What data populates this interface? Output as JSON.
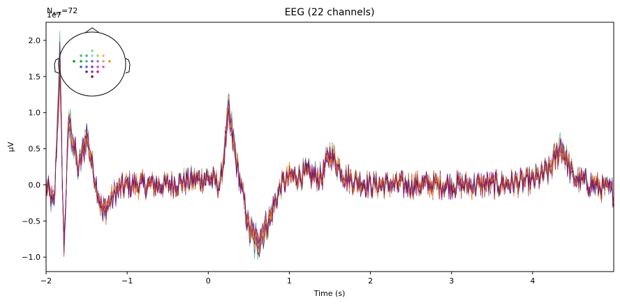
{
  "chart_data": {
    "type": "line",
    "title": "EEG (22 channels)",
    "annotation_top_left": "N",
    "annotation_ave": "ave",
    "annotation_n": "=72",
    "offset_label": "1e7",
    "xlabel": "Time (s)",
    "ylabel": "µV",
    "xlim": [
      -2,
      5
    ],
    "ylim": [
      -1.2,
      2.25
    ],
    "x_ticks": [
      -2,
      -1,
      0,
      1,
      2,
      3,
      4
    ],
    "x_tick_labels": [
      "−2",
      "−1",
      "0",
      "1",
      "2",
      "3",
      "4"
    ],
    "y_ticks": [
      -1.0,
      -0.5,
      0.0,
      0.5,
      1.0,
      1.5,
      2.0
    ],
    "y_tick_labels": [
      "−1.0",
      "−0.5",
      "0.0",
      "0.5",
      "1.0",
      "1.5",
      "2.0"
    ],
    "grid": false,
    "sensor_inset": "top-left",
    "series_colors": [
      "#2ca02c",
      "#00a000",
      "#3cb371",
      "#7be37b",
      "#5fd35f",
      "#66cdaa",
      "#5b9bd5",
      "#4169e1",
      "#7b68ee",
      "#6a5acd",
      "#9370db",
      "#8a2be2",
      "#ba55d3",
      "#9932cc",
      "#800080",
      "#c71585",
      "#ff8c00",
      "#ffa500",
      "#f4a460",
      "#d2691e",
      "#b22222",
      "#4b0082"
    ],
    "key_points_x": [
      -2.0,
      -1.9,
      -1.83,
      -1.78,
      -1.72,
      -1.6,
      -1.5,
      -1.4,
      -1.3,
      -1.15,
      -1.0,
      -0.5,
      0.0,
      0.15,
      0.25,
      0.35,
      0.5,
      0.6,
      0.75,
      0.9,
      1.0,
      1.2,
      1.4,
      1.5,
      1.7,
      2.0,
      2.5,
      3.0,
      3.5,
      4.0,
      4.2,
      4.35,
      4.5,
      5.0
    ],
    "key_points_y": [
      0.0,
      -0.3,
      1.7,
      -0.9,
      0.9,
      0.2,
      0.7,
      0.1,
      -0.4,
      -0.1,
      0.0,
      0.0,
      0.1,
      0.0,
      1.0,
      0.3,
      -0.6,
      -0.8,
      -0.5,
      0.0,
      0.1,
      0.15,
      0.1,
      0.45,
      0.1,
      0.0,
      0.0,
      0.0,
      0.0,
      0.05,
      0.2,
      0.55,
      0.1,
      -0.1
    ],
    "sensor_colors": [
      "#7be37b",
      "#2ecc71",
      "#3cb371",
      "#87cefa",
      "#a0d468",
      "#f0c040",
      "#00a000",
      "#2ca02c",
      "#5b9bd5",
      "#6a5acd",
      "#9370db",
      "#d2a679",
      "#ff8c00",
      "#2e5fd1",
      "#4169e1",
      "#8a2be2",
      "#ba55d3",
      "#d94fd9",
      "#3b2ea0",
      "#7b2cbf",
      "#c71585",
      "#800040"
    ]
  }
}
